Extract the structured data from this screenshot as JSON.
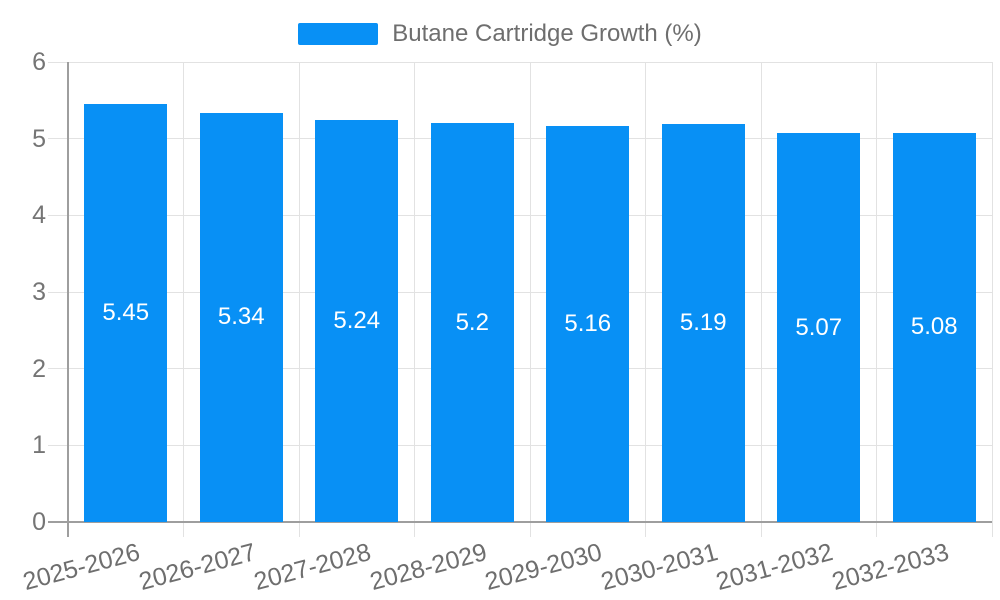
{
  "legend": {
    "label": "Butane Cartridge Growth (%)"
  },
  "colors": {
    "bar": "#0890f5",
    "grid": "#e2e2e2",
    "axis": "#9e9e9e",
    "tick_text": "#757575",
    "value_text": "#ffffff"
  },
  "chart_data": {
    "type": "bar",
    "title": "Butane Cartridge Growth (%)",
    "categories": [
      "2025-2026",
      "2026-2027",
      "2027-2028",
      "2028-2029",
      "2029-2030",
      "2030-2031",
      "2031-2032",
      "2032-2033"
    ],
    "values": [
      5.45,
      5.34,
      5.24,
      5.2,
      5.16,
      5.19,
      5.07,
      5.08
    ],
    "value_labels": [
      "5.45",
      "5.34",
      "5.24",
      "5.2",
      "5.16",
      "5.19",
      "5.07",
      "5.08"
    ],
    "xlabel": "",
    "ylabel": "",
    "ylim": [
      0,
      6
    ],
    "yticks": [
      0,
      1,
      2,
      3,
      4,
      5,
      6
    ],
    "grid": true,
    "legend_position": "top-center",
    "x_label_rotation_deg": -15
  }
}
